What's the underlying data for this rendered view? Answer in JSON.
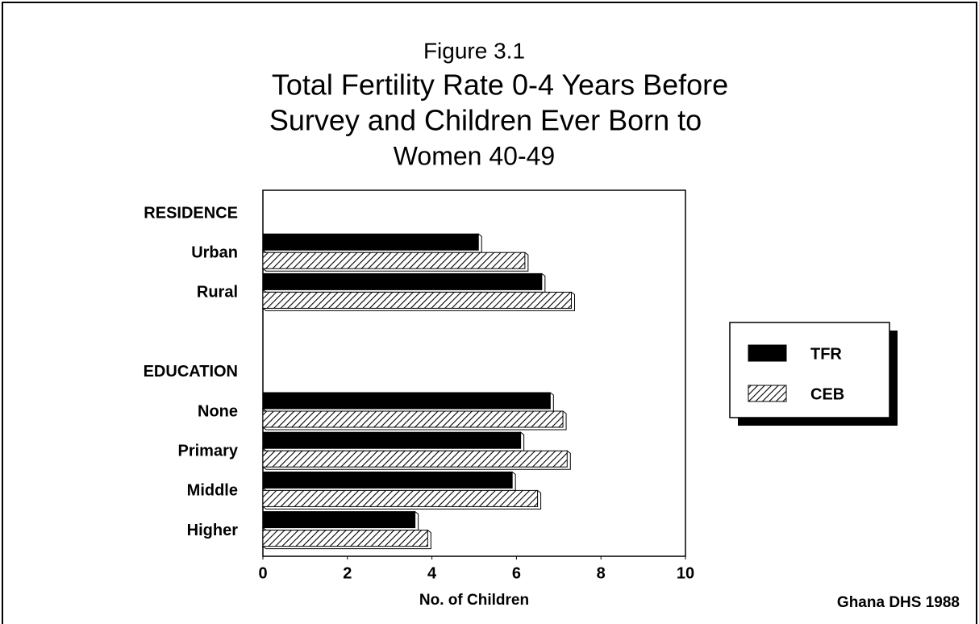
{
  "chart_data": {
    "type": "bar",
    "orientation": "horizontal",
    "figure_label": "Figure 3.1",
    "title": [
      "Total Fertility Rate 0-4 Years Before",
      "Survey and Children Ever Born to",
      "Women 40-49"
    ],
    "groups": [
      {
        "name": "RESIDENCE",
        "categories": [
          "Urban",
          "Rural"
        ]
      },
      {
        "name": "EDUCATION",
        "categories": [
          "None",
          "Primary",
          "Middle",
          "Higher"
        ]
      }
    ],
    "series": [
      {
        "name": "TFR",
        "color": "#000000",
        "values": [
          5.1,
          6.6,
          6.8,
          6.1,
          5.9,
          3.6
        ]
      },
      {
        "name": "CEB",
        "color": "hatch",
        "values": [
          6.2,
          7.3,
          7.1,
          7.2,
          6.5,
          3.9
        ]
      }
    ],
    "xlim": [
      0,
      10
    ],
    "xticks": [
      0,
      2,
      4,
      6,
      8,
      10
    ],
    "xlabel": "No. of Children",
    "source": "Ghana DHS 1988",
    "grid": false,
    "legend": "right"
  }
}
